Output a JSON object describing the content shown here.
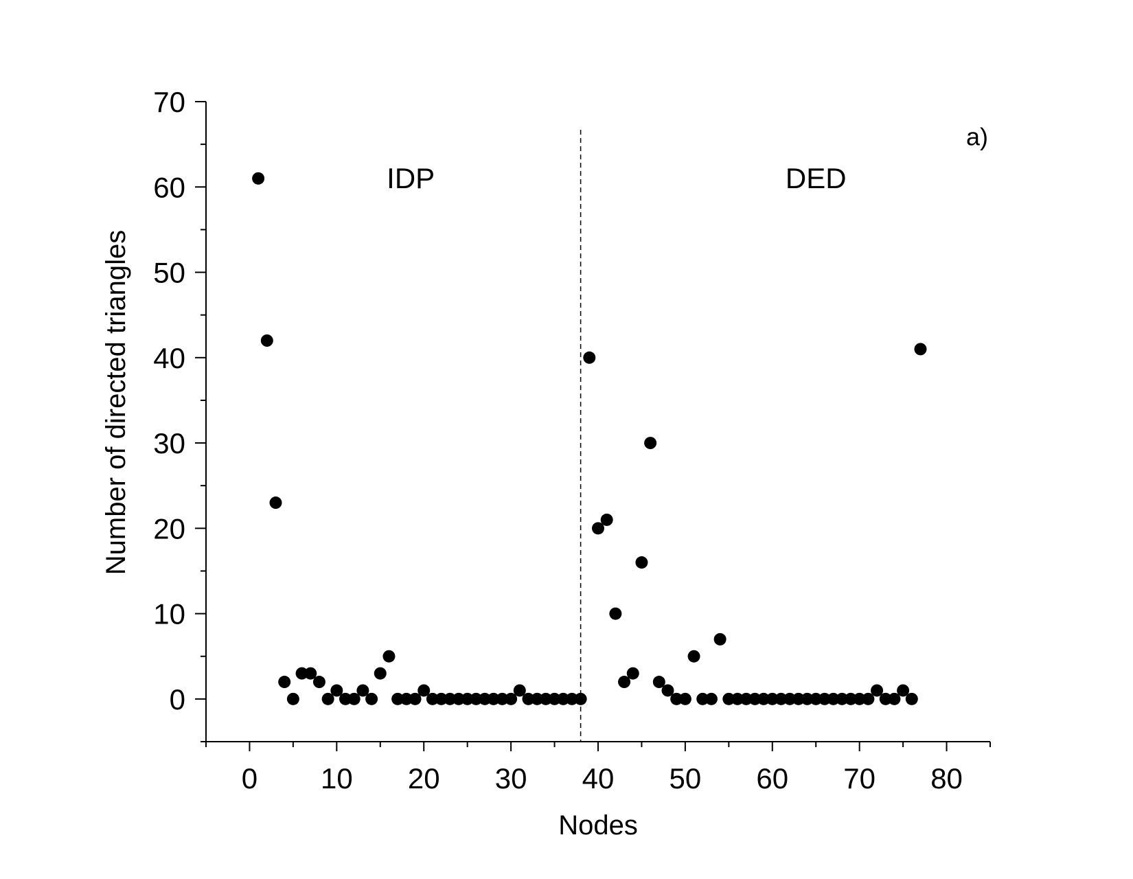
{
  "chart_data": {
    "type": "scatter",
    "title": "",
    "xlabel": "Nodes",
    "ylabel": "Number of directed triangles",
    "xlim": [
      -5,
      85
    ],
    "ylim": [
      -5,
      70
    ],
    "x_ticks": [
      0,
      10,
      20,
      30,
      40,
      50,
      60,
      70,
      80
    ],
    "x_tick_labels": [
      "0",
      "10",
      "20",
      "30",
      "40",
      "50",
      "60",
      "70",
      "80"
    ],
    "y_ticks": [
      0,
      10,
      20,
      30,
      40,
      50,
      60,
      70
    ],
    "y_tick_labels": [
      "0",
      "10",
      "20",
      "30",
      "40",
      "50",
      "60",
      "70"
    ],
    "minor_ticks": true,
    "grid": false,
    "legend": "none",
    "marker_color": "#000000",
    "divider": {
      "x": 38,
      "style": "dashed"
    },
    "annotations": [
      {
        "id": "idp",
        "text": "IDP",
        "x": 18.5,
        "y": 61
      },
      {
        "id": "ded",
        "text": "DED",
        "x": 65,
        "y": 61
      },
      {
        "id": "panel",
        "text": "a)",
        "x": 83.5,
        "y": 66
      }
    ],
    "series": [
      {
        "x": [
          1,
          2,
          3,
          4,
          5,
          6,
          7,
          8,
          9,
          10,
          11,
          12,
          13,
          14,
          15,
          16,
          17,
          18,
          19,
          20,
          21,
          22,
          23,
          24,
          25,
          26,
          27,
          28,
          29,
          30,
          31,
          32,
          33,
          34,
          35,
          36,
          37,
          38,
          39,
          40,
          41,
          42,
          43,
          44,
          45,
          46,
          47,
          48,
          49,
          50,
          51,
          52,
          53,
          54,
          55,
          56,
          57,
          58,
          59,
          60,
          61,
          62,
          63,
          64,
          65,
          66,
          67,
          68,
          69,
          70,
          71,
          72,
          73,
          74,
          75,
          76,
          77
        ],
        "y": [
          61,
          42,
          23,
          2,
          0,
          3,
          3,
          2,
          0,
          1,
          0,
          0,
          1,
          0,
          3,
          5,
          0,
          0,
          0,
          1,
          0,
          0,
          0,
          0,
          0,
          0,
          0,
          0,
          0,
          0,
          1,
          0,
          0,
          0,
          0,
          0,
          0,
          0,
          40,
          20,
          21,
          10,
          2,
          3,
          16,
          30,
          2,
          1,
          0,
          0,
          5,
          0,
          0,
          7,
          0,
          0,
          0,
          0,
          0,
          0,
          0,
          0,
          0,
          0,
          0,
          0,
          0,
          0,
          0,
          0,
          0,
          1,
          0,
          0,
          1,
          0,
          41
        ]
      }
    ]
  }
}
